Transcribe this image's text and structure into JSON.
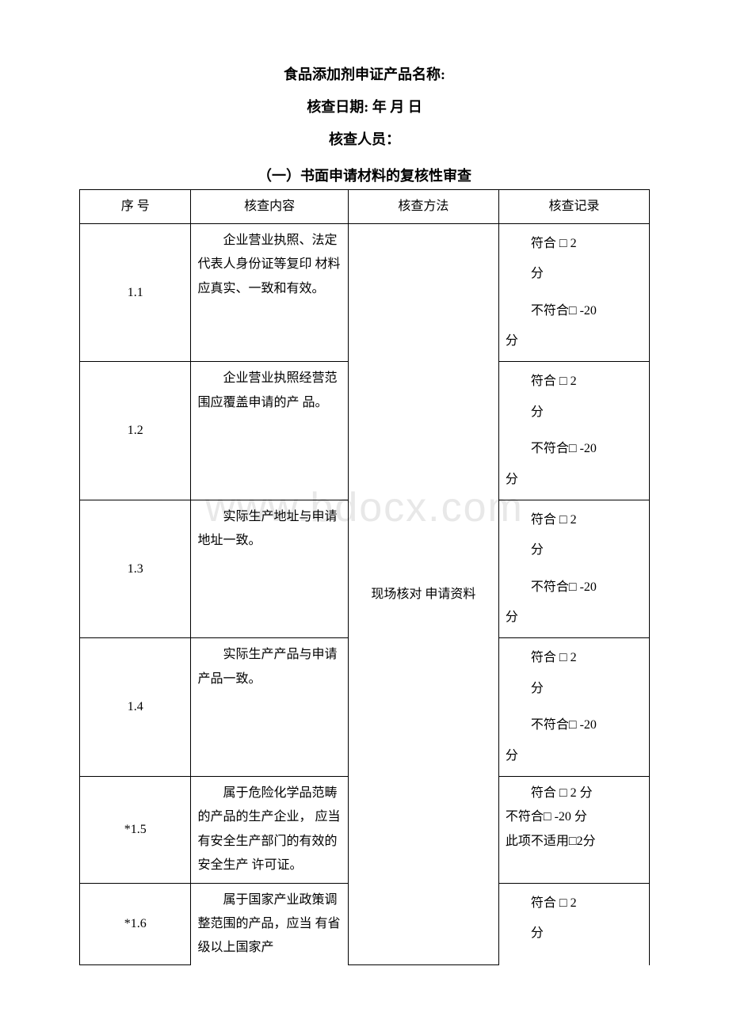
{
  "header": {
    "title": "食品添加剂申证产品名称:",
    "date_line": "核查日期: 年 月 日",
    "inspector_line": "核查人员："
  },
  "section_title": "（一）书面申请材料的复核性审查",
  "watermark": "www.bdocx.com",
  "table": {
    "headers": {
      "seq": "序 号",
      "content": "核查内容",
      "method": "核查方法",
      "record": "核查记录"
    },
    "method_text": "现场核对 申请资料",
    "rows": [
      {
        "seq": "1.1",
        "content": "企业营业执照、法定代表人身份证等复印 材料应真实、一致和有效。",
        "record_type": "standard",
        "record_pass": "符合 □ 2",
        "record_pass2": "分",
        "record_fail": "不符合□ -20",
        "record_fail2": "分"
      },
      {
        "seq": "1.2",
        "content": "企业营业执照经营范围应覆盖申请的产 品。",
        "record_type": "standard",
        "record_pass": "符合 □ 2",
        "record_pass2": "分",
        "record_fail": "不符合□ -20",
        "record_fail2": "分"
      },
      {
        "seq": "1.3",
        "content": "实际生产地址与申请地址一致。",
        "record_type": "standard",
        "record_pass": "符合 □ 2",
        "record_pass2": "分",
        "record_fail": "不符合□ -20",
        "record_fail2": "分"
      },
      {
        "seq": "1.4",
        "content": "实际生产产品与申请产品一致。",
        "record_type": "standard",
        "record_pass": "符合 □ 2",
        "record_pass2": "分",
        "record_fail": "不符合□ -20",
        "record_fail2": "分"
      },
      {
        "seq": "*1.5",
        "content": "属于危险化学品范畴的产品的生产企业， 应当有安全生产部门的有效的安全生产 许可证。",
        "record_type": "na",
        "record_pass": "符合 □ 2 分",
        "record_fail": "不符合□ -20 分",
        "record_na": "此项不适用□2分"
      },
      {
        "seq": "*1.6",
        "content": "属于国家产业政策调整范围的产品，应当 有省级以上国家产",
        "record_type": "partial",
        "record_pass": "符合 □ 2",
        "record_pass2": "分"
      }
    ]
  }
}
